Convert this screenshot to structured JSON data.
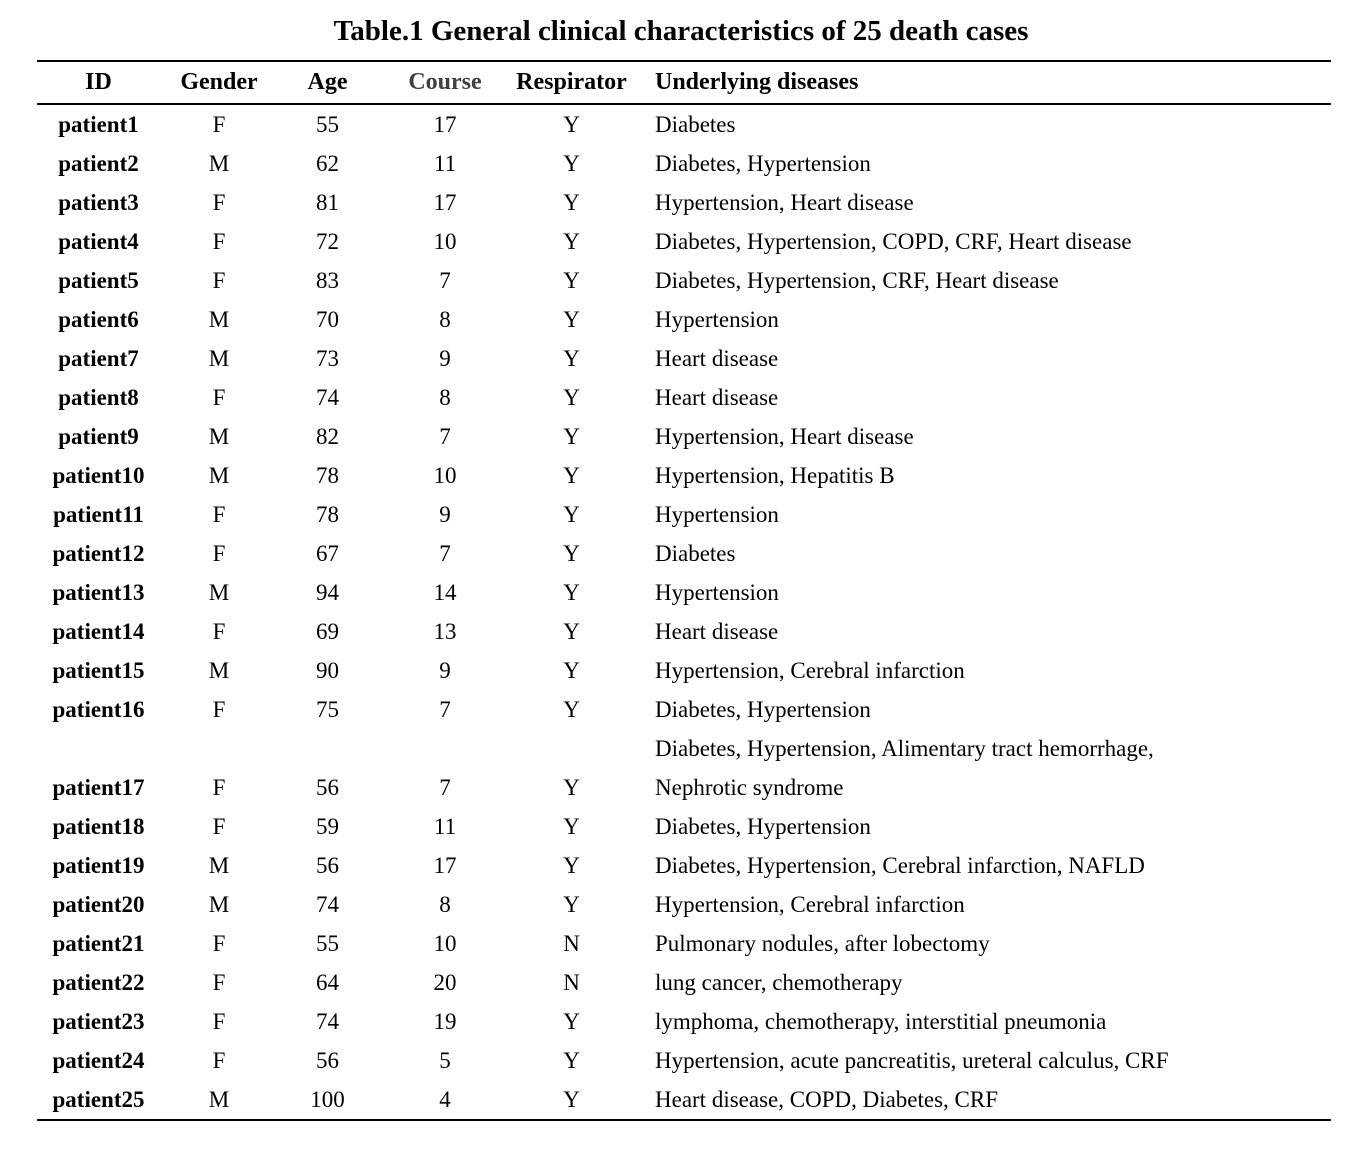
{
  "title": "Table.1 General clinical characteristics of 25 death cases",
  "colors": {
    "text": "#000000",
    "rule": "#000000",
    "course_header": "#3f3f3f",
    "background": "#ffffff"
  },
  "table": {
    "columns": [
      {
        "key": "id",
        "label": "ID"
      },
      {
        "key": "gender",
        "label": "Gender"
      },
      {
        "key": "age",
        "label": "Age"
      },
      {
        "key": "course",
        "label": "Course"
      },
      {
        "key": "respirator",
        "label": "Respirator"
      },
      {
        "key": "diseases",
        "label": "Underlying diseases"
      }
    ],
    "rows": [
      {
        "id": "patient1",
        "gender": "F",
        "age": 55,
        "course": 17,
        "respirator": "Y",
        "diseases": "Diabetes"
      },
      {
        "id": "patient2",
        "gender": "M",
        "age": 62,
        "course": 11,
        "respirator": "Y",
        "diseases": "Diabetes, Hypertension"
      },
      {
        "id": "patient3",
        "gender": "F",
        "age": 81,
        "course": 17,
        "respirator": "Y",
        "diseases": "Hypertension, Heart disease"
      },
      {
        "id": "patient4",
        "gender": "F",
        "age": 72,
        "course": 10,
        "respirator": "Y",
        "diseases": "Diabetes, Hypertension, COPD, CRF, Heart disease"
      },
      {
        "id": "patient5",
        "gender": "F",
        "age": 83,
        "course": 7,
        "respirator": "Y",
        "diseases": "Diabetes, Hypertension, CRF, Heart disease"
      },
      {
        "id": "patient6",
        "gender": "M",
        "age": 70,
        "course": 8,
        "respirator": "Y",
        "diseases": "Hypertension"
      },
      {
        "id": "patient7",
        "gender": "M",
        "age": 73,
        "course": 9,
        "respirator": "Y",
        "diseases": "Heart disease"
      },
      {
        "id": "patient8",
        "gender": "F",
        "age": 74,
        "course": 8,
        "respirator": "Y",
        "diseases": "Heart disease"
      },
      {
        "id": "patient9",
        "gender": "M",
        "age": 82,
        "course": 7,
        "respirator": "Y",
        "diseases": "Hypertension, Heart disease"
      },
      {
        "id": "patient10",
        "gender": "M",
        "age": 78,
        "course": 10,
        "respirator": "Y",
        "diseases": "Hypertension, Hepatitis B"
      },
      {
        "id": "patient11",
        "gender": "F",
        "age": 78,
        "course": 9,
        "respirator": "Y",
        "diseases": "Hypertension"
      },
      {
        "id": "patient12",
        "gender": "F",
        "age": 67,
        "course": 7,
        "respirator": "Y",
        "diseases": "Diabetes"
      },
      {
        "id": "patient13",
        "gender": "M",
        "age": 94,
        "course": 14,
        "respirator": "Y",
        "diseases": "Hypertension"
      },
      {
        "id": "patient14",
        "gender": "F",
        "age": 69,
        "course": 13,
        "respirator": "Y",
        "diseases": "Heart disease"
      },
      {
        "id": "patient15",
        "gender": "M",
        "age": 90,
        "course": 9,
        "respirator": "Y",
        "diseases": "Hypertension, Cerebral infarction"
      },
      {
        "id": "patient16",
        "gender": "F",
        "age": 75,
        "course": 7,
        "respirator": "Y",
        "diseases": "Diabetes, Hypertension"
      },
      {
        "id": "patient17",
        "gender": "F",
        "age": 56,
        "course": 7,
        "respirator": "Y",
        "diseases": "Diabetes, Hypertension, Alimentary tract hemorrhage,\nNephrotic syndrome"
      },
      {
        "id": "patient18",
        "gender": "F",
        "age": 59,
        "course": 11,
        "respirator": "Y",
        "diseases": "Diabetes, Hypertension"
      },
      {
        "id": "patient19",
        "gender": "M",
        "age": 56,
        "course": 17,
        "respirator": "Y",
        "diseases": "Diabetes, Hypertension, Cerebral infarction, NAFLD"
      },
      {
        "id": "patient20",
        "gender": "M",
        "age": 74,
        "course": 8,
        "respirator": "Y",
        "diseases": "Hypertension, Cerebral infarction"
      },
      {
        "id": "patient21",
        "gender": "F",
        "age": 55,
        "course": 10,
        "respirator": "N",
        "diseases": "Pulmonary nodules, after lobectomy"
      },
      {
        "id": "patient22",
        "gender": "F",
        "age": 64,
        "course": 20,
        "respirator": "N",
        "diseases": "lung cancer, chemotherapy"
      },
      {
        "id": "patient23",
        "gender": "F",
        "age": 74,
        "course": 19,
        "respirator": "Y",
        "diseases": "lymphoma, chemotherapy, interstitial pneumonia"
      },
      {
        "id": "patient24",
        "gender": "F",
        "age": 56,
        "course": 5,
        "respirator": "Y",
        "diseases": "Hypertension, acute pancreatitis, ureteral calculus, CRF"
      },
      {
        "id": "patient25",
        "gender": "M",
        "age": 100,
        "course": 4,
        "respirator": "Y",
        "diseases": "Heart disease, COPD, Diabetes, CRF"
      }
    ]
  }
}
